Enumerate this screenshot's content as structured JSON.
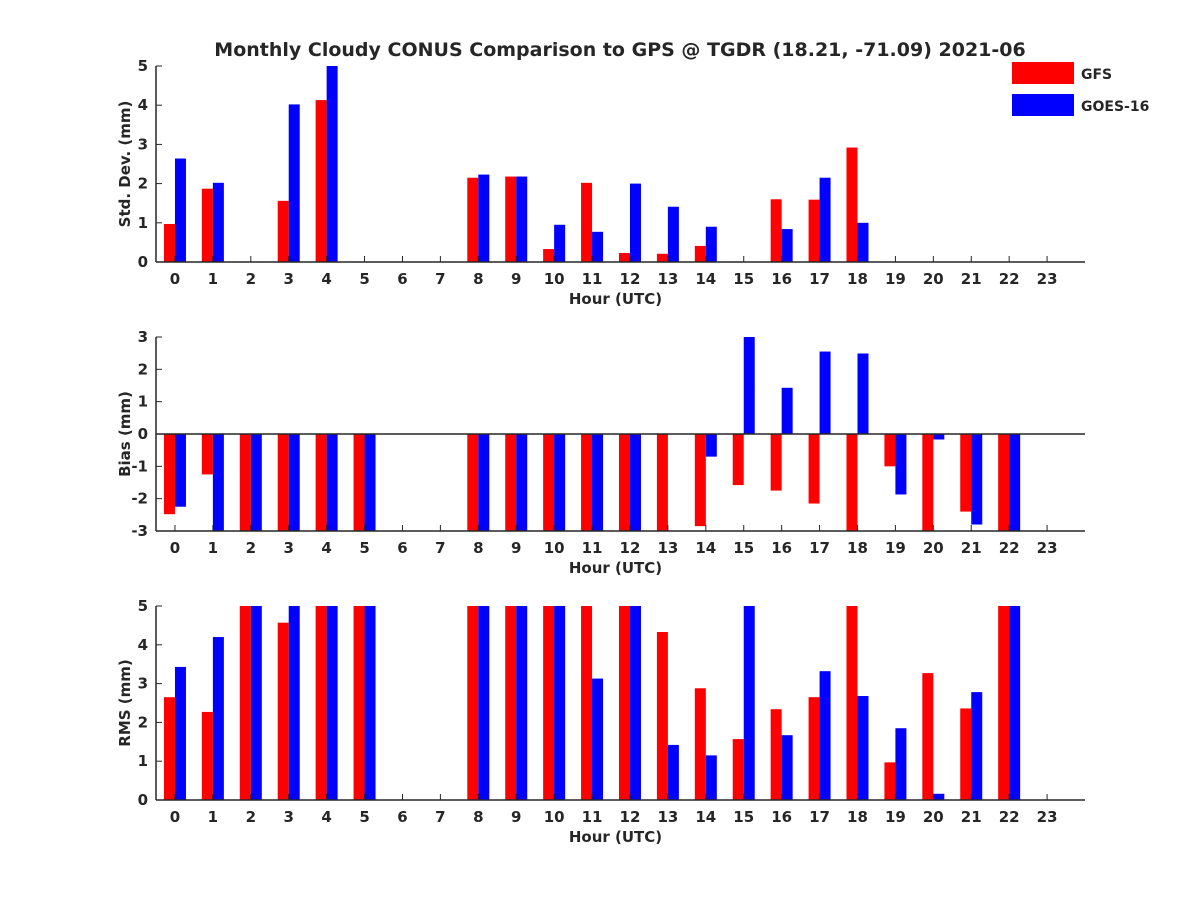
{
  "title": "Monthly Cloudy CONUS Comparison to GPS @ TGDR (18.21, -71.09) 2021-06",
  "legend": {
    "placement": "top-right",
    "items": [
      {
        "label": "GFS",
        "color": "#ff0000"
      },
      {
        "label": "GOES-16",
        "color": "#0000ff"
      }
    ]
  },
  "chart_data": [
    {
      "type": "bar",
      "xlabel": "Hour (UTC)",
      "ylabel": "Std. Dev. (mm)",
      "ylim": [
        0,
        5
      ],
      "yticks": [
        0,
        1,
        2,
        3,
        4,
        5
      ],
      "categories": [
        "0",
        "1",
        "2",
        "3",
        "4",
        "5",
        "6",
        "7",
        "8",
        "9",
        "10",
        "11",
        "12",
        "13",
        "14",
        "15",
        "16",
        "17",
        "18",
        "19",
        "20",
        "21",
        "22",
        "23"
      ],
      "series": [
        {
          "name": "GFS",
          "color": "#ff0000",
          "values": [
            0.97,
            1.87,
            null,
            1.56,
            4.13,
            null,
            null,
            null,
            2.15,
            2.18,
            0.33,
            2.02,
            0.23,
            0.21,
            0.41,
            null,
            1.6,
            1.59,
            2.92,
            null,
            null,
            null,
            null,
            null
          ]
        },
        {
          "name": "GOES-16",
          "color": "#0000ff",
          "values": [
            2.64,
            2.02,
            null,
            4.02,
            5.0,
            null,
            null,
            null,
            2.23,
            2.18,
            0.95,
            0.77,
            2.0,
            1.41,
            0.9,
            null,
            0.84,
            2.15,
            1.0,
            null,
            null,
            null,
            null,
            null
          ]
        }
      ]
    },
    {
      "type": "bar",
      "xlabel": "Hour (UTC)",
      "ylabel": "Bias (mm)",
      "ylim": [
        -3,
        3
      ],
      "yticks": [
        -3,
        -2,
        -1,
        0,
        1,
        2,
        3
      ],
      "categories": [
        "0",
        "1",
        "2",
        "3",
        "4",
        "5",
        "6",
        "7",
        "8",
        "9",
        "10",
        "11",
        "12",
        "13",
        "14",
        "15",
        "16",
        "17",
        "18",
        "19",
        "20",
        "21",
        "22",
        "23"
      ],
      "series": [
        {
          "name": "GFS",
          "color": "#ff0000",
          "values": [
            -2.48,
            -1.25,
            -3.0,
            -3.0,
            -3.0,
            -3.0,
            null,
            null,
            -3.0,
            -3.0,
            -3.0,
            -3.0,
            -3.0,
            -3.0,
            -2.85,
            -1.58,
            -1.75,
            -2.15,
            -3.0,
            -1.0,
            -3.0,
            -2.4,
            -3.0,
            null
          ]
        },
        {
          "name": "GOES-16",
          "color": "#0000ff",
          "values": [
            -2.25,
            -3.0,
            -3.0,
            -3.0,
            -3.0,
            -3.0,
            null,
            null,
            -3.0,
            -3.0,
            -3.0,
            -3.0,
            -3.0,
            null,
            -0.7,
            3.0,
            1.43,
            2.55,
            2.49,
            -1.87,
            -0.17,
            -2.8,
            -3.0,
            null
          ]
        }
      ]
    },
    {
      "type": "bar",
      "xlabel": "Hour (UTC)",
      "ylabel": "RMS (mm)",
      "ylim": [
        0,
        5
      ],
      "yticks": [
        0,
        1,
        2,
        3,
        4,
        5
      ],
      "categories": [
        "0",
        "1",
        "2",
        "3",
        "4",
        "5",
        "6",
        "7",
        "8",
        "9",
        "10",
        "11",
        "12",
        "13",
        "14",
        "15",
        "16",
        "17",
        "18",
        "19",
        "20",
        "21",
        "22",
        "23"
      ],
      "series": [
        {
          "name": "GFS",
          "color": "#ff0000",
          "values": [
            2.65,
            2.27,
            5.0,
            4.57,
            5.0,
            5.0,
            null,
            null,
            5.0,
            5.0,
            5.0,
            5.0,
            5.0,
            4.33,
            2.88,
            1.57,
            2.34,
            2.65,
            5.0,
            0.97,
            3.27,
            2.36,
            5.0,
            null
          ]
        },
        {
          "name": "GOES-16",
          "color": "#0000ff",
          "values": [
            3.43,
            4.2,
            5.0,
            5.0,
            5.0,
            5.0,
            null,
            null,
            5.0,
            5.0,
            5.0,
            3.13,
            5.0,
            1.42,
            1.15,
            5.0,
            1.67,
            3.32,
            2.68,
            1.85,
            0.16,
            2.78,
            5.0,
            null
          ]
        }
      ]
    }
  ]
}
